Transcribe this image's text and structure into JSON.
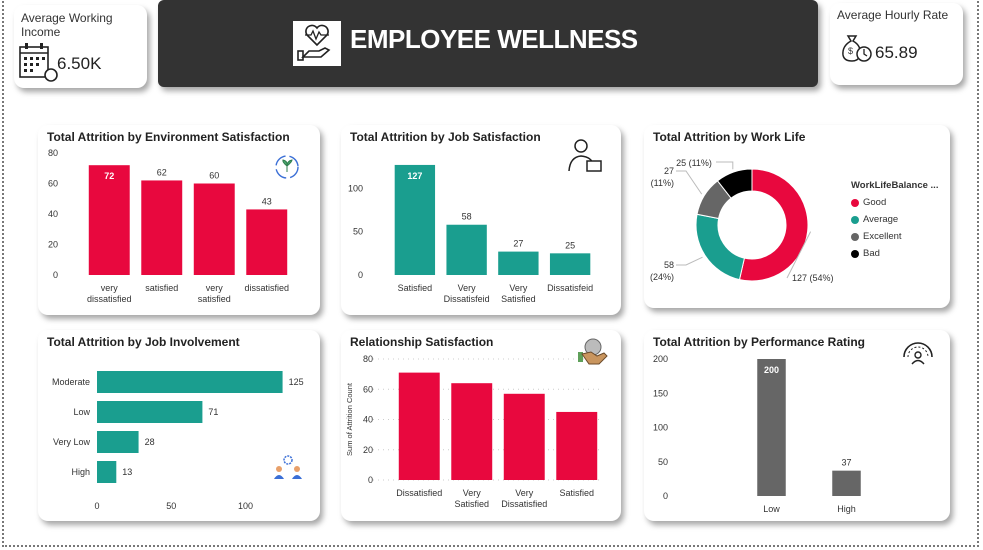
{
  "kpis": {
    "avg_income": {
      "label": "Average Working Income",
      "value": "6.50K",
      "icon": "calendar-money-icon"
    },
    "avg_hourly": {
      "label": "Average Hourly Rate",
      "value": "65.89",
      "icon": "money-bag-clock-icon"
    }
  },
  "header": {
    "title": "EMPLOYEE WELLNESS",
    "icon": "heart-hand-icon"
  },
  "colors": {
    "red": "#E8083E",
    "teal": "#1A9E8F",
    "gray": "#666666",
    "black": "#000000",
    "banner": "#333333"
  },
  "chart_data": [
    {
      "id": "env",
      "type": "bar",
      "title": "Total Attrition by Environment Satisfaction",
      "categories": [
        "very dissatisfied",
        "satisfied",
        "very satisfied",
        "dissatisfied"
      ],
      "values": [
        72,
        62,
        60,
        43
      ],
      "ylim": [
        0,
        80
      ],
      "yticks": [
        0,
        20,
        40,
        60,
        80
      ],
      "color": "#E8083E",
      "data_labels": true,
      "grid": false
    },
    {
      "id": "job",
      "type": "bar",
      "title": "Total Attrition by Job Satisfaction",
      "categories": [
        "Satisfied",
        "Very Dissatisfeid",
        "Very Satisfied",
        "Dissatisfeid"
      ],
      "values": [
        127,
        58,
        27,
        25
      ],
      "ylim": [
        0,
        150
      ],
      "yticks": [
        0,
        50,
        100
      ],
      "color": "#1A9E8F",
      "data_labels": true,
      "grid": false
    },
    {
      "id": "worklife",
      "type": "pie",
      "title": "Total Attrition by Work Life",
      "legend_title": "WorkLifeBalance ...",
      "legend_position": "right",
      "categories": [
        "Good",
        "Average",
        "Excellent",
        "Bad"
      ],
      "values": [
        127,
        58,
        27,
        25
      ],
      "labels": [
        "127 (54%)",
        "58 (24%)",
        "27 (11%)",
        "25 (11%)"
      ],
      "colors": [
        "#E8083E",
        "#1A9E8F",
        "#666666",
        "#000000"
      ]
    },
    {
      "id": "involvement",
      "type": "bar",
      "orientation": "horizontal",
      "title": "Total Attrition by Job Involvement",
      "categories": [
        "Moderate",
        "Low",
        "Very Low",
        "High"
      ],
      "values": [
        125,
        71,
        28,
        13
      ],
      "xlim": [
        0,
        130
      ],
      "xticks": [
        0,
        50,
        100
      ],
      "color": "#1A9E8F",
      "data_labels": true,
      "grid": false
    },
    {
      "id": "relationship",
      "type": "bar",
      "title": "Relationship Satisfaction",
      "ylabel": "Sum of Attrition Count",
      "categories": [
        "Dissatisfied",
        "Very Satisfied",
        "Very Dissatisfied",
        "Satisfied"
      ],
      "values": [
        71,
        64,
        57,
        45
      ],
      "ylim": [
        0,
        80
      ],
      "yticks": [
        0,
        20,
        40,
        60,
        80
      ],
      "color": "#E8083E",
      "data_labels": false,
      "grid": true
    },
    {
      "id": "performance",
      "type": "bar",
      "title": "Total Attrition by Performance Rating",
      "categories": [
        "Low",
        "High"
      ],
      "values": [
        200,
        37
      ],
      "ylim": [
        0,
        200
      ],
      "yticks": [
        0,
        50,
        100,
        150,
        200
      ],
      "color": "#666666",
      "data_labels": true,
      "grid": false
    }
  ]
}
